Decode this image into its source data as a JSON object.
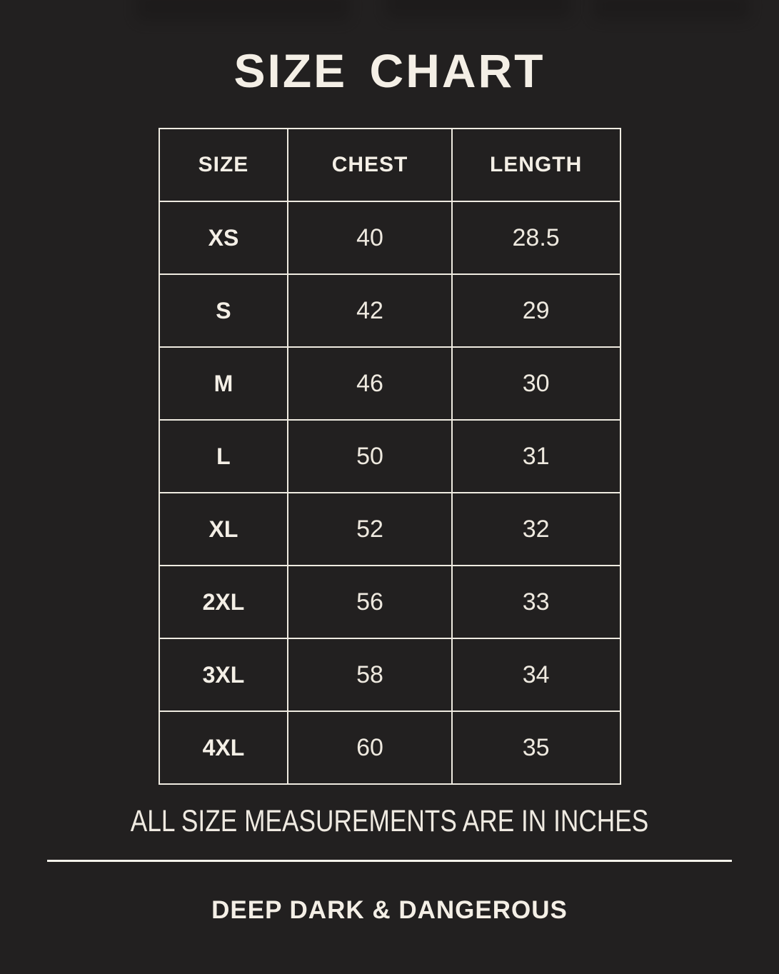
{
  "colors": {
    "background": "#222020",
    "text_cream": "#f2ede3",
    "border_cream": "#efebe1"
  },
  "chart_data": {
    "type": "table",
    "title": "SIZE CHART",
    "columns": [
      "SIZE",
      "CHEST",
      "LENGTH"
    ],
    "rows": [
      [
        "XS",
        "40",
        "28.5"
      ],
      [
        "S",
        "42",
        "29"
      ],
      [
        "M",
        "46",
        "30"
      ],
      [
        "L",
        "50",
        "31"
      ],
      [
        "XL",
        "52",
        "32"
      ],
      [
        "2XL",
        "56",
        "33"
      ],
      [
        "3XL",
        "58",
        "34"
      ],
      [
        "4XL",
        "60",
        "35"
      ]
    ],
    "note": "ALL SIZE MEASUREMENTS ARE IN INCHES",
    "footer": "DEEP DARK & DANGEROUS"
  }
}
